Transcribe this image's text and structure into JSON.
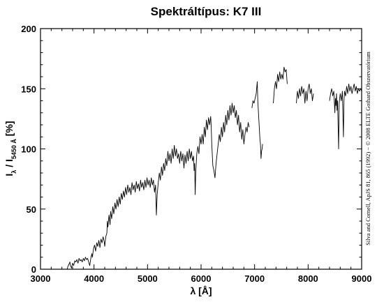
{
  "chart_data": {
    "type": "line",
    "title": "Spektráltípus: K7 III",
    "xlabel": "λ [Å]",
    "ylabel": {
      "main": "I",
      "sub_lambda": "λ",
      "mid": " / I",
      "sub_ref": "5450 Å",
      "unit": " [%]"
    },
    "credit": "Silva and Cornell, ApJS 81, 865 (1992) − © 2008 ELTE Gothard Obszervatórium",
    "xlim": [
      3000,
      9000
    ],
    "ylim": [
      0,
      200
    ],
    "xticks": [
      3000,
      4000,
      5000,
      6000,
      7000,
      8000,
      9000
    ],
    "yticks": [
      0,
      50,
      100,
      150,
      200
    ],
    "grid": false,
    "color": "#000000",
    "series": [
      {
        "segments": [
          [
            [
              3500,
              0
            ],
            [
              3510,
              2
            ],
            [
              3530,
              4
            ],
            [
              3550,
              6
            ],
            [
              3560,
              3
            ],
            [
              3580,
              1
            ],
            [
              3600,
              5
            ],
            [
              3620,
              3
            ],
            [
              3640,
              7
            ],
            [
              3660,
              6
            ],
            [
              3680,
              8
            ],
            [
              3700,
              5
            ],
            [
              3720,
              9
            ],
            [
              3740,
              7
            ],
            [
              3760,
              8
            ],
            [
              3780,
              6
            ],
            [
              3800,
              9
            ],
            [
              3820,
              7
            ],
            [
              3840,
              10
            ],
            [
              3860,
              8
            ],
            [
              3880,
              9
            ],
            [
              3900,
              6
            ],
            [
              3920,
              3
            ],
            [
              3940,
              9
            ],
            [
              3960,
              13
            ],
            [
              3970,
              10
            ],
            [
              3990,
              17
            ],
            [
              4010,
              20
            ],
            [
              4030,
              15
            ],
            [
              4050,
              22
            ],
            [
              4070,
              19
            ],
            [
              4090,
              24
            ],
            [
              4110,
              18
            ],
            [
              4130,
              25
            ],
            [
              4150,
              22
            ],
            [
              4170,
              27
            ],
            [
              4190,
              23
            ],
            [
              4200,
              19
            ],
            [
              4220,
              27
            ],
            [
              4240,
              30
            ],
            [
              4250,
              40
            ],
            [
              4260,
              35
            ],
            [
              4280,
              45
            ],
            [
              4300,
              37
            ],
            [
              4310,
              48
            ],
            [
              4330,
              42
            ],
            [
              4350,
              52
            ],
            [
              4370,
              46
            ],
            [
              4390,
              55
            ],
            [
              4410,
              50
            ],
            [
              4430,
              58
            ],
            [
              4450,
              52
            ],
            [
              4470,
              60
            ],
            [
              4490,
              54
            ],
            [
              4510,
              63
            ],
            [
              4530,
              58
            ],
            [
              4550,
              65
            ],
            [
              4570,
              60
            ],
            [
              4590,
              68
            ],
            [
              4610,
              62
            ],
            [
              4630,
              70
            ],
            [
              4650,
              64
            ],
            [
              4670,
              68
            ],
            [
              4690,
              62
            ],
            [
              4710,
              72
            ],
            [
              4730,
              66
            ],
            [
              4750,
              70
            ],
            [
              4770,
              64
            ],
            [
              4790,
              73
            ],
            [
              4810,
              67
            ],
            [
              4830,
              71
            ],
            [
              4850,
              65
            ],
            [
              4870,
              74
            ],
            [
              4890,
              68
            ],
            [
              4910,
              72
            ],
            [
              4930,
              66
            ],
            [
              4950,
              74
            ],
            [
              4970,
              68
            ],
            [
              4990,
              76
            ],
            [
              5010,
              70
            ],
            [
              5030,
              74
            ],
            [
              5050,
              68
            ],
            [
              5070,
              76
            ],
            [
              5090,
              70
            ],
            [
              5110,
              74
            ],
            [
              5130,
              64
            ],
            [
              5150,
              70
            ],
            [
              5165,
              45
            ],
            [
              5180,
              62
            ],
            [
              5200,
              72
            ],
            [
              5220,
              80
            ],
            [
              5240,
              74
            ],
            [
              5260,
              85
            ],
            [
              5280,
              78
            ],
            [
              5300,
              88
            ],
            [
              5320,
              82
            ],
            [
              5340,
              92
            ],
            [
              5360,
              86
            ],
            [
              5380,
              98
            ],
            [
              5400,
              90
            ],
            [
              5420,
              96
            ],
            [
              5440,
              88
            ],
            [
              5460,
              100
            ],
            [
              5480,
              92
            ],
            [
              5500,
              103
            ],
            [
              5520,
              94
            ],
            [
              5540,
              100
            ],
            [
              5560,
              92
            ],
            [
              5580,
              96
            ],
            [
              5600,
              88
            ],
            [
              5620,
              98
            ],
            [
              5640,
              90
            ],
            [
              5660,
              96
            ],
            [
              5680,
              84
            ],
            [
              5700,
              95
            ],
            [
              5720,
              88
            ],
            [
              5740,
              98
            ],
            [
              5760,
              90
            ],
            [
              5780,
              100
            ],
            [
              5800,
              92
            ],
            [
              5820,
              98
            ],
            [
              5840,
              90
            ],
            [
              5860,
              94
            ],
            [
              5870,
              82
            ],
            [
              5880,
              88
            ],
            [
              5890,
              62
            ],
            [
              5900,
              80
            ],
            [
              5920,
              96
            ],
            [
              5940,
              102
            ],
            [
              5960,
              96
            ],
            [
              5980,
              110
            ],
            [
              6000,
              104
            ],
            [
              6020,
              112
            ],
            [
              6040,
              104
            ],
            [
              6060,
              118
            ],
            [
              6080,
              110
            ],
            [
              6100,
              124
            ],
            [
              6120,
              116
            ],
            [
              6140,
              126
            ],
            [
              6160,
              120
            ],
            [
              6180,
              127
            ],
            [
              6190,
              118
            ],
            [
              6200,
              104
            ],
            [
              6220,
              86
            ],
            [
              6240,
              82
            ],
            [
              6260,
              76
            ],
            [
              6280,
              88
            ],
            [
              6300,
              96
            ],
            [
              6320,
              104
            ],
            [
              6340,
              112
            ],
            [
              6360,
              106
            ],
            [
              6380,
              118
            ],
            [
              6400,
              110
            ],
            [
              6420,
              122
            ],
            [
              6440,
              114
            ],
            [
              6460,
              128
            ],
            [
              6480,
              120
            ],
            [
              6500,
              132
            ],
            [
              6520,
              124
            ],
            [
              6540,
              136
            ],
            [
              6560,
              128
            ],
            [
              6580,
              138
            ],
            [
              6600,
              130
            ],
            [
              6620,
              136
            ],
            [
              6640,
              126
            ],
            [
              6660,
              132
            ],
            [
              6680,
              120
            ],
            [
              6700,
              128
            ],
            [
              6720,
              114
            ],
            [
              6740,
              122
            ],
            [
              6760,
              108
            ],
            [
              6780,
              116
            ],
            [
              6800,
              104
            ],
            [
              6820,
              112
            ],
            [
              6840,
              118
            ],
            [
              6860,
              114
            ],
            [
              6880,
              122
            ],
            [
              6900,
              118
            ]
          ],
          [
            [
              6950,
              134
            ],
            [
              6970,
              140
            ],
            [
              6990,
              138
            ],
            [
              7010,
              142
            ],
            [
              7030,
              146
            ],
            [
              7050,
              156
            ],
            [
              7060,
              140
            ],
            [
              7080,
              124
            ],
            [
              7100,
              108
            ],
            [
              7110,
              104
            ],
            [
              7120,
              92
            ],
            [
              7130,
              98
            ],
            [
              7140,
              100
            ],
            [
              7150,
              104
            ]
          ],
          [
            [
              7350,
              138
            ],
            [
              7370,
              150
            ],
            [
              7390,
              156
            ],
            [
              7410,
              150
            ],
            [
              7430,
              162
            ],
            [
              7450,
              156
            ],
            [
              7470,
              164
            ],
            [
              7490,
              158
            ],
            [
              7510,
              162
            ],
            [
              7530,
              158
            ],
            [
              7550,
              168
            ],
            [
              7570,
              164
            ],
            [
              7590,
              166
            ],
            [
              7610,
              154
            ]
          ],
          [
            [
              7780,
              138
            ],
            [
              7800,
              148
            ],
            [
              7820,
              142
            ],
            [
              7840,
              150
            ],
            [
              7860,
              144
            ],
            [
              7880,
              152
            ],
            [
              7900,
              146
            ],
            [
              7920,
              150
            ],
            [
              7940,
              138
            ],
            [
              7960,
              148
            ],
            [
              7980,
              140
            ],
            [
              8000,
              150
            ],
            [
              8020,
              154
            ],
            [
              8040,
              146
            ],
            [
              8060,
              150
            ],
            [
              8080,
              140
            ],
            [
              8100,
              146
            ]
          ],
          [
            [
              8400,
              140
            ],
            [
              8420,
              146
            ],
            [
              8440,
              150
            ],
            [
              8460,
              144
            ],
            [
              8480,
              148
            ],
            [
              8500,
              130
            ],
            [
              8510,
              142
            ],
            [
              8520,
              136
            ],
            [
              8530,
              146
            ],
            [
              8540,
              132
            ],
            [
              8550,
              140
            ],
            [
              8560,
              120
            ],
            [
              8570,
              100
            ],
            [
              8580,
              138
            ],
            [
              8600,
              146
            ],
            [
              8620,
              140
            ],
            [
              8640,
              148
            ],
            [
              8650,
              128
            ],
            [
              8660,
              110
            ],
            [
              8670,
              140
            ],
            [
              8680,
              148
            ],
            [
              8700,
              144
            ],
            [
              8720,
              152
            ],
            [
              8740,
              146
            ],
            [
              8760,
              154
            ],
            [
              8780,
              148
            ],
            [
              8800,
              152
            ],
            [
              8820,
              146
            ],
            [
              8840,
              150
            ],
            [
              8860,
              154
            ],
            [
              8880,
              148
            ],
            [
              8900,
              152
            ],
            [
              8920,
              146
            ],
            [
              8940,
              150
            ],
            [
              8960,
              148
            ],
            [
              8980,
              150
            ],
            [
              9000,
              148
            ]
          ]
        ]
      }
    ]
  }
}
